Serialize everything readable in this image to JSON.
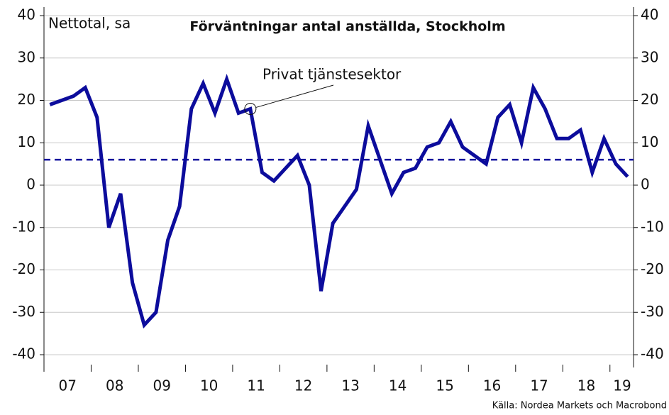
{
  "chart_data": {
    "type": "line",
    "title": "Förväntningar antal anställda, Stockholm",
    "y_label": "Nettotal, sa",
    "source": "Källa: Nordea Markets och Macrobond",
    "x": [
      2007.125,
      2007.375,
      2007.625,
      2007.875,
      2008.125,
      2008.375,
      2008.625,
      2008.875,
      2009.125,
      2009.375,
      2009.625,
      2009.875,
      2010.125,
      2010.375,
      2010.625,
      2010.875,
      2011.125,
      2011.375,
      2011.625,
      2011.875,
      2012.125,
      2012.375,
      2012.625,
      2012.875,
      2013.125,
      2013.375,
      2013.625,
      2013.875,
      2014.125,
      2014.375,
      2014.625,
      2014.875,
      2015.125,
      2015.375,
      2015.625,
      2015.875,
      2016.125,
      2016.375,
      2016.625,
      2016.875,
      2017.125,
      2017.375,
      2017.625,
      2017.875,
      2018.125,
      2018.375,
      2018.625,
      2018.875,
      2019.125,
      2019.375
    ],
    "series": [
      {
        "name": "Privat tjänstesektor",
        "color": "#0c0c9c",
        "values": [
          19,
          20,
          21,
          23,
          16,
          -10,
          -2,
          -23,
          -33,
          -30,
          -13,
          -5,
          18,
          24,
          17,
          25,
          17,
          18,
          3,
          1,
          4,
          7,
          0,
          -25,
          -9,
          -5,
          -1,
          14,
          6,
          -2,
          3,
          4,
          9,
          10,
          15,
          9,
          7,
          5,
          16,
          19,
          10,
          23,
          18,
          11,
          11,
          13,
          3,
          11,
          5,
          2
        ]
      }
    ],
    "annotation": {
      "text": "Privat tjänstesektor",
      "x": 2011.375,
      "y": 18
    },
    "reference_line": {
      "value": 6,
      "color": "#0c0c9c",
      "style": "dashed"
    },
    "xlim": [
      2007,
      2019.5
    ],
    "xticks": [
      {
        "value": 2007.5,
        "label": "07"
      },
      {
        "value": 2008.5,
        "label": "08"
      },
      {
        "value": 2009.5,
        "label": "09"
      },
      {
        "value": 2010.5,
        "label": "10"
      },
      {
        "value": 2011.5,
        "label": "11"
      },
      {
        "value": 2012.5,
        "label": "12"
      },
      {
        "value": 2013.5,
        "label": "13"
      },
      {
        "value": 2014.5,
        "label": "14"
      },
      {
        "value": 2015.5,
        "label": "15"
      },
      {
        "value": 2016.5,
        "label": "16"
      },
      {
        "value": 2017.5,
        "label": "17"
      },
      {
        "value": 2018.5,
        "label": "18"
      },
      {
        "value": 2019.5,
        "label": "19"
      }
    ],
    "ylim": [
      -40,
      40
    ],
    "yticks": [
      -40,
      -30,
      -20,
      -10,
      0,
      10,
      20,
      30,
      40
    ],
    "y2lim": [
      -40,
      40
    ],
    "y2ticks": [
      -40,
      -30,
      -20,
      -10,
      0,
      10,
      20,
      30,
      40
    ],
    "grid": true
  }
}
